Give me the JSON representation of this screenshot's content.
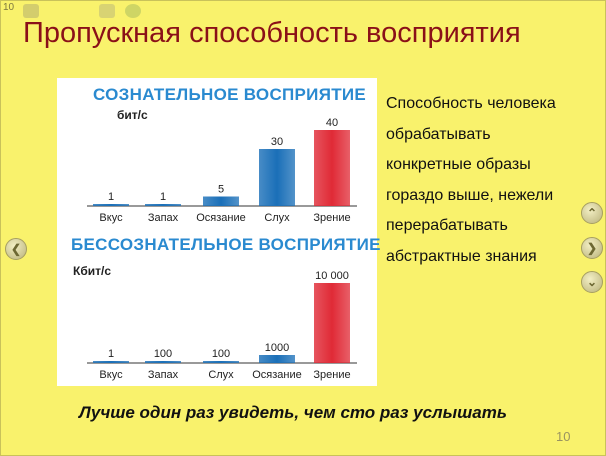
{
  "app": {
    "slide_number_top": "10",
    "title": "Пропускная способность восприятия",
    "page_number": "10"
  },
  "toolbar": {
    "icons": [
      "slide-panel-icon",
      "print-icon",
      "refresh-icon"
    ]
  },
  "colors": {
    "background": "#f9f26c",
    "title": "#8a1018",
    "heading": "#2a8ad0",
    "bar_blue": "#1a6fb8",
    "bar_red": "#e02a36"
  },
  "side_text": {
    "lines": [
      "Способность человека",
      "обрабатывать",
      "конкретные образы",
      "гораздо выше, нежели",
      "перерабатывать",
      "абстрактные знания"
    ]
  },
  "footer": {
    "quote": "Лучше один раз увидеть, чем сто раз услышать"
  },
  "navigation": {
    "prev_icon": "chevron-left-icon",
    "up_icon": "chevron-up-icon",
    "next_icon": "chevron-right-icon",
    "down_icon": "chevron-down-icon"
  },
  "chart_data": [
    {
      "type": "bar",
      "title": "СОЗНАТЕЛЬНОЕ ВОСПРИЯТИЕ",
      "ylabel": "бит/с",
      "categories": [
        "Вкус",
        "Запах",
        "Осязание",
        "Слух",
        "Зрение"
      ],
      "values": [
        1,
        1,
        5,
        30,
        40
      ],
      "value_labels": [
        "1",
        "1",
        "5",
        "30",
        "40"
      ],
      "bar_colors": [
        "blue",
        "blue",
        "blue",
        "blue",
        "red"
      ],
      "ylim": [
        0,
        40
      ]
    },
    {
      "type": "bar",
      "title": "БЕССОЗНАТЕЛЬНОЕ ВОСПРИЯТИЕ",
      "ylabel": "Кбит/с",
      "categories": [
        "Вкус",
        "Запах",
        "Слух",
        "Осязание",
        "Зрение"
      ],
      "values": [
        1,
        100,
        100,
        1000,
        10000
      ],
      "value_labels": [
        "1",
        "100",
        "100",
        "1000",
        "10 000"
      ],
      "bar_colors": [
        "blue",
        "blue",
        "blue",
        "blue",
        "red"
      ],
      "ylim": [
        0,
        10000
      ]
    }
  ]
}
